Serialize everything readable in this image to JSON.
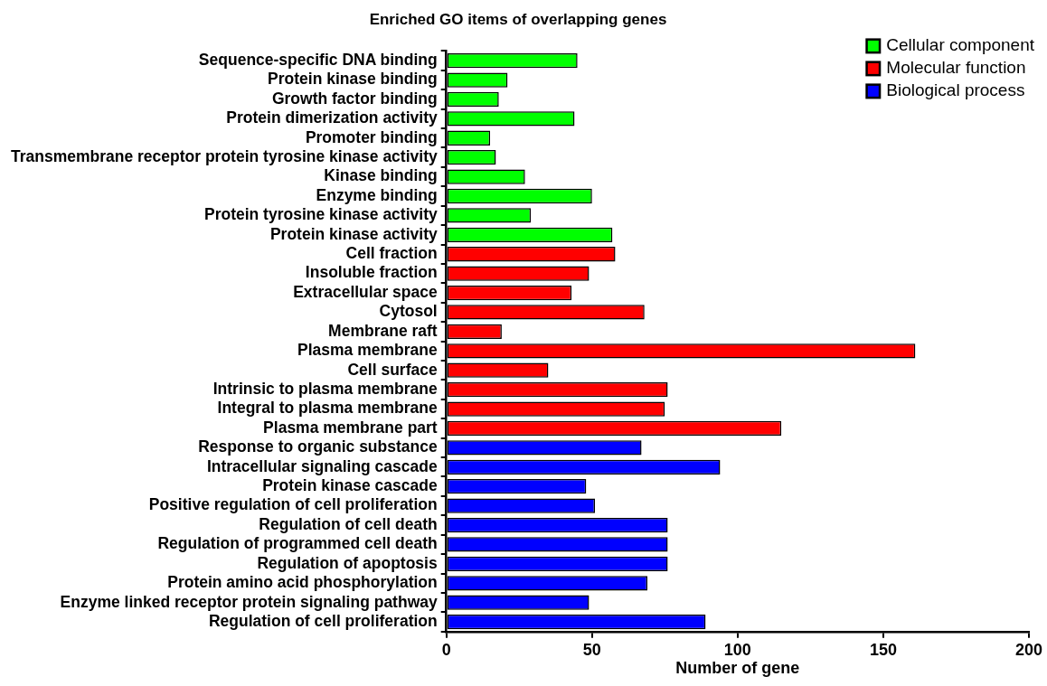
{
  "chart_data": {
    "type": "bar",
    "orientation": "horizontal",
    "title": "Enriched GO items of overlapping genes",
    "xlabel": "Number of gene",
    "categories": [
      "Sequence-specific DNA binding",
      "Protein kinase binding",
      "Growth factor binding",
      "Protein dimerization activity",
      "Promoter binding",
      "Transmembrane receptor protein tyrosine kinase activity",
      "Kinase binding",
      "Enzyme binding",
      "Protein tyrosine kinase activity",
      "Protein kinase activity",
      "Cell fraction",
      "Insoluble fraction",
      "Extracellular space",
      "Cytosol",
      "Membrane raft",
      "Plasma membrane",
      "Cell surface",
      "Intrinsic to plasma membrane",
      "Integral to plasma membrane",
      "Plasma membrane part",
      "Response to organic substance",
      "Intracellular signaling cascade",
      "Protein kinase cascade",
      "Positive regulation of cell proliferation",
      "Regulation of cell death",
      "Regulation of programmed cell death",
      "Regulation of apoptosis",
      "Protein amino acid phosphorylation",
      "Enzyme linked receptor protein signaling pathway",
      "Regulation of cell proliferation"
    ],
    "series": [
      {
        "name": "Cellular component",
        "color": "#00ff00",
        "values": [
          45,
          21,
          18,
          44,
          15,
          17,
          27,
          50,
          29,
          57,
          null,
          null,
          null,
          null,
          null,
          null,
          null,
          null,
          null,
          null,
          null,
          null,
          null,
          null,
          null,
          null,
          null,
          null,
          null,
          null
        ]
      },
      {
        "name": "Molecular function",
        "color": "#ff0000",
        "values": [
          null,
          null,
          null,
          null,
          null,
          null,
          null,
          null,
          null,
          null,
          58,
          49,
          43,
          68,
          19,
          161,
          35,
          76,
          75,
          115,
          null,
          null,
          null,
          null,
          null,
          null,
          null,
          null,
          null,
          null
        ]
      },
      {
        "name": "Biological process",
        "color": "#0000ff",
        "values": [
          null,
          null,
          null,
          null,
          null,
          null,
          null,
          null,
          null,
          null,
          null,
          null,
          null,
          null,
          null,
          null,
          null,
          null,
          null,
          null,
          67,
          94,
          48,
          51,
          76,
          76,
          76,
          69,
          49,
          89
        ]
      }
    ],
    "xlim": [
      0,
      200
    ],
    "xticks": [
      0,
      50,
      100,
      150,
      200
    ],
    "grid": false,
    "legend": "top right"
  }
}
